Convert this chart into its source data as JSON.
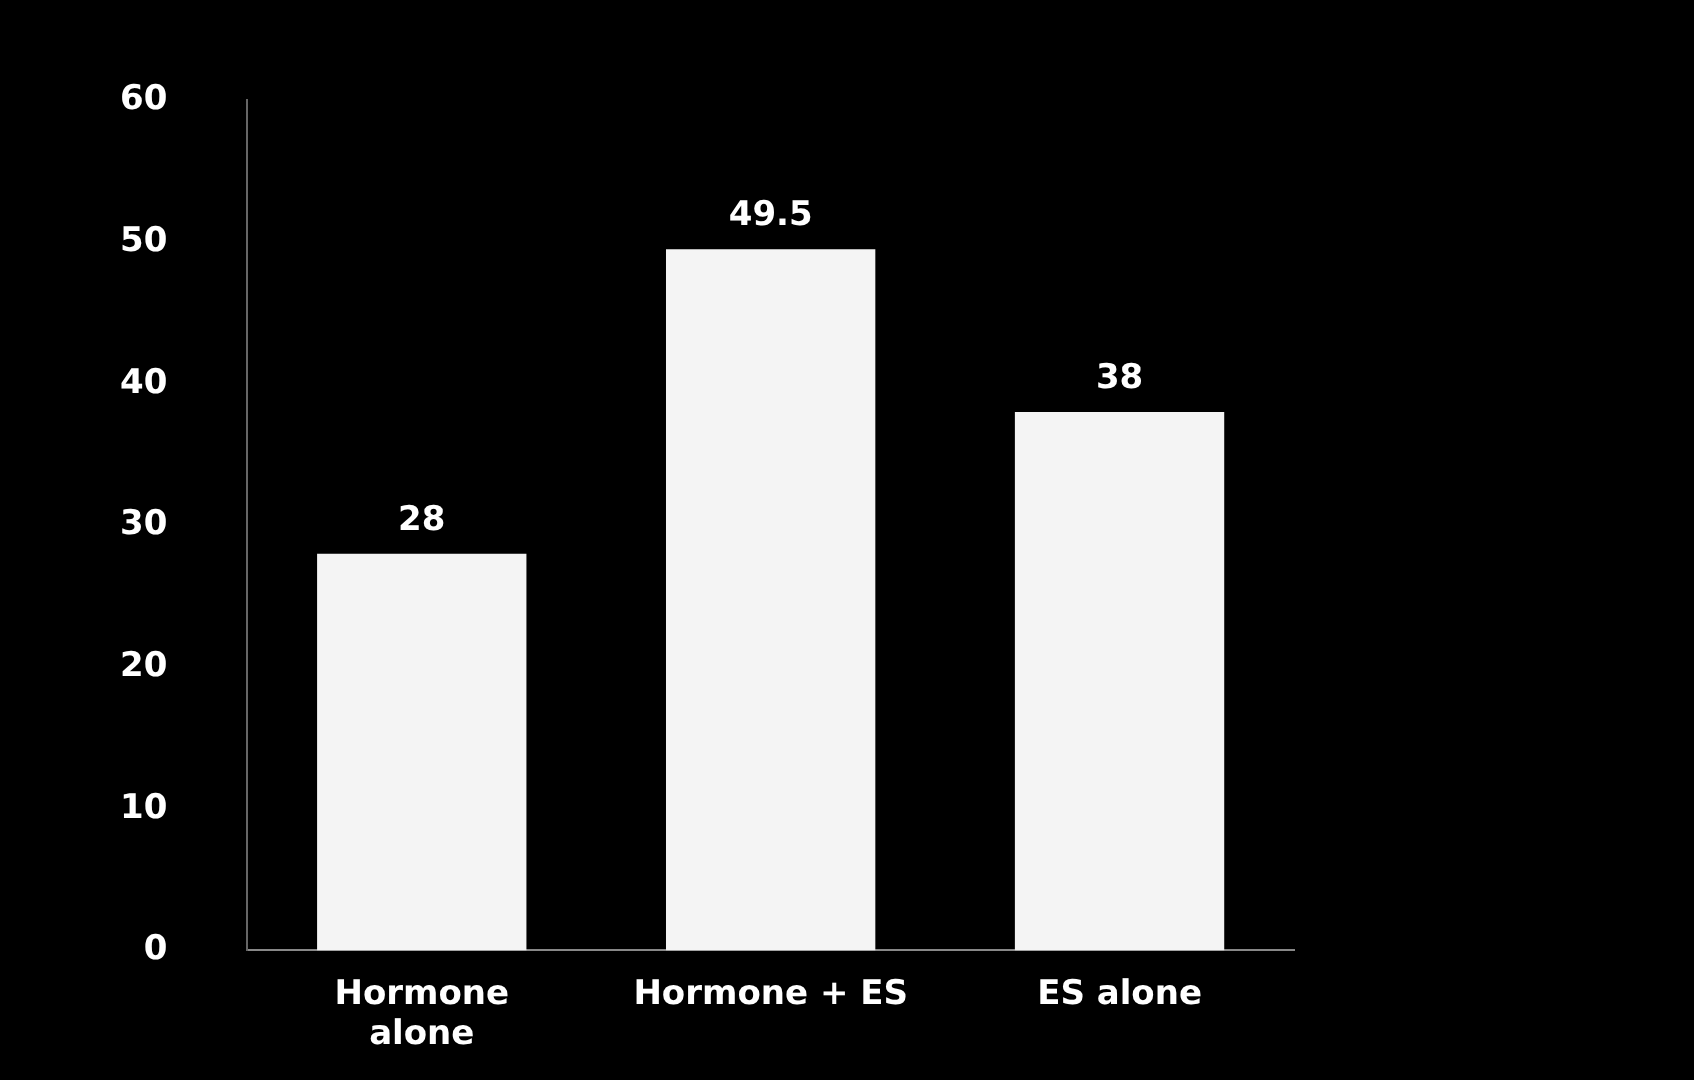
{
  "chart_data": {
    "type": "bar",
    "categories": [
      "Hormone alone",
      "Hormone + ES",
      "ES alone"
    ],
    "values": [
      28,
      49.5,
      38
    ],
    "color": "#f4f4f4",
    "ylim": [
      0,
      60
    ],
    "yticks": [
      0,
      10,
      20,
      30,
      40,
      50,
      60
    ],
    "grid": false,
    "legend": false,
    "data_labels": true
  }
}
